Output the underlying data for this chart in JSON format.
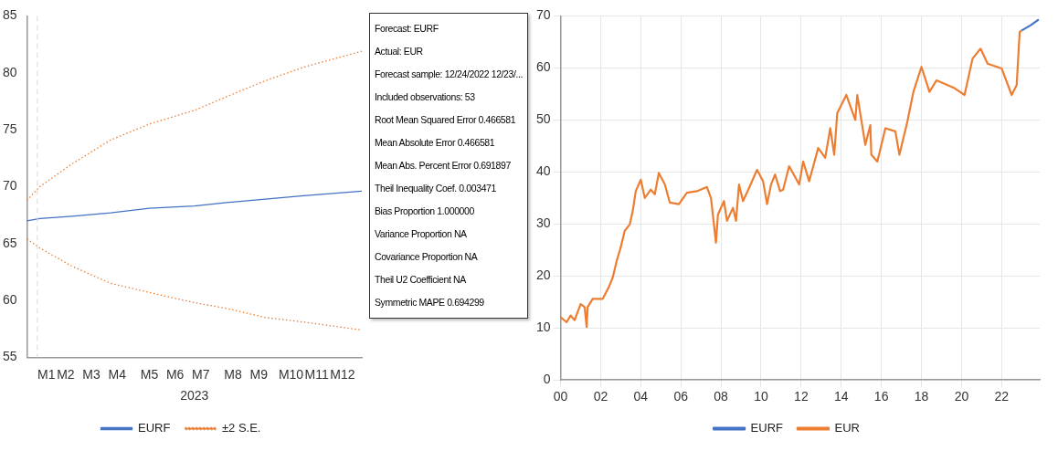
{
  "chart_data": [
    {
      "type": "line",
      "xlabel": "2023",
      "categories": [
        null,
        null,
        null,
        "M1",
        null,
        null,
        "M2",
        null,
        null,
        null,
        "M3",
        null,
        null,
        null,
        "M4",
        null,
        null,
        null,
        null,
        "M5",
        null,
        null,
        null,
        "M6",
        null,
        null,
        null,
        "M7",
        null,
        null,
        null,
        null,
        "M8",
        null,
        null,
        null,
        "M9",
        null,
        null,
        null,
        null,
        "M10",
        null,
        null,
        null,
        "M11",
        null,
        null,
        null,
        "M12",
        null,
        null,
        null
      ],
      "series": [
        {
          "name": "EURF",
          "color": "#4472c4",
          "line_style": "solid",
          "values": [
            67.0,
            null,
            67.2,
            null,
            null,
            null,
            null,
            67.4,
            null,
            null,
            null,
            null,
            null,
            67.7,
            null,
            null,
            null,
            null,
            null,
            68.1,
            null,
            null,
            null,
            null,
            null,
            null,
            68.3,
            null,
            null,
            null,
            null,
            68.6,
            null,
            null,
            null,
            null,
            null,
            68.9,
            null,
            null,
            null,
            null,
            null,
            69.2,
            null,
            null,
            null,
            null,
            null,
            null,
            null,
            null,
            69.6
          ]
        },
        {
          "name": "±2 S.E.",
          "color": "#ed7d31",
          "line_style": "dotted",
          "values": [
            68.8,
            null,
            70.0,
            null,
            null,
            null,
            null,
            72.0,
            null,
            null,
            null,
            null,
            null,
            74.1,
            null,
            null,
            null,
            null,
            null,
            75.5,
            null,
            null,
            null,
            null,
            null,
            null,
            76.7,
            null,
            null,
            null,
            null,
            77.9,
            null,
            null,
            null,
            null,
            null,
            79.3,
            null,
            null,
            null,
            null,
            null,
            80.5,
            null,
            null,
            null,
            null,
            null,
            null,
            null,
            null,
            81.9
          ]
        },
        {
          "color": "#ed7d31",
          "line_style": "dotted",
          "values": [
            65.4,
            null,
            64.6,
            null,
            null,
            null,
            null,
            63.0,
            null,
            null,
            null,
            null,
            null,
            61.5,
            null,
            null,
            null,
            null,
            null,
            60.7,
            null,
            null,
            null,
            null,
            null,
            null,
            59.8,
            null,
            null,
            null,
            null,
            59.3,
            null,
            null,
            null,
            null,
            null,
            58.5,
            null,
            null,
            null,
            null,
            null,
            58.1,
            null,
            null,
            null,
            null,
            null,
            null,
            null,
            null,
            57.4
          ]
        }
      ],
      "ylim": [
        55,
        85
      ],
      "yticks": [
        55,
        60,
        65,
        70,
        75,
        80,
        85
      ],
      "grid": false,
      "legend": "bottom",
      "marker": "none"
    },
    {
      "type": "other",
      "annotations": [
        "Forecast: EURF",
        "Actual: EUR",
        "Forecast sample: 12/24/2022 12/23/...",
        "Included observations: 53",
        "Root Mean Squared Error 0.466581",
        "Mean Absolute Error 0.466581",
        "Mean Abs. Percent Error 0.691897",
        "Theil Inequality Coef. 0.003471",
        "Bias Proportion 1.000000",
        "Variance Proportion NA",
        "Covariance Proportion NA",
        "Theil U2 Coefficient NA",
        "Symmetric MAPE 0.694299"
      ]
    },
    {
      "type": "line",
      "series": [
        {
          "name": "EURF",
          "color": "#4472c4",
          "x": [
            2023.0,
            2023.45,
            2023.85
          ],
          "values": [
            67.2,
            68.2,
            69.3
          ]
        },
        {
          "name": "EUR",
          "color": "#ed7d31",
          "x": [
            2000.0,
            2000.3,
            2000.5,
            2000.7,
            2001.0,
            2001.2,
            2001.3,
            2001.35,
            2001.6,
            2002.1,
            2002.4,
            2002.6,
            2002.8,
            2003.0,
            2003.2,
            2003.45,
            2003.6,
            2003.75,
            2004.0,
            2004.2,
            2004.5,
            2004.7,
            2004.9,
            2005.2,
            2005.45,
            2005.9,
            2006.3,
            2006.8,
            2007.3,
            2007.5,
            2007.65,
            2007.75,
            2007.85,
            2008.15,
            2008.3,
            2008.6,
            2008.75,
            2008.9,
            2009.1,
            2009.4,
            2009.8,
            2010.1,
            2010.3,
            2010.5,
            2010.7,
            2010.95,
            2011.1,
            2011.4,
            2011.9,
            2012.1,
            2012.4,
            2012.85,
            2013.2,
            2013.45,
            2013.65,
            2013.8,
            2014.25,
            2014.7,
            2014.8,
            2015.2,
            2015.45,
            2015.5,
            2015.8,
            2016.2,
            2016.7,
            2016.9,
            2017.3,
            2017.6,
            2018.0,
            2018.4,
            2018.75,
            2019.65,
            2020.15,
            2020.55,
            2020.95,
            2021.3,
            2022.0,
            2022.5,
            2022.75,
            2022.9,
            2023.0
          ],
          "values": [
            12.1,
            11.1,
            12.4,
            11.5,
            14.6,
            14.0,
            10.2,
            14.0,
            15.6,
            15.6,
            17.8,
            19.7,
            22.9,
            25.5,
            28.7,
            29.9,
            32.5,
            36.3,
            38.5,
            35.0,
            36.6,
            35.7,
            39.8,
            37.6,
            34.1,
            33.8,
            36.0,
            36.3,
            37.1,
            35.0,
            29.9,
            26.4,
            31.8,
            34.4,
            30.6,
            33.1,
            30.6,
            37.6,
            34.4,
            36.9,
            40.4,
            38.2,
            33.8,
            37.6,
            39.5,
            36.3,
            36.6,
            41.1,
            37.6,
            42.0,
            38.2,
            44.6,
            42.7,
            48.4,
            43.3,
            51.3,
            54.8,
            50.0,
            54.8,
            45.2,
            49.0,
            43.3,
            42.0,
            48.4,
            47.8,
            43.3,
            49.7,
            55.4,
            60.2,
            55.4,
            57.6,
            56.1,
            54.8,
            61.8,
            63.7,
            60.8,
            59.9,
            54.8,
            56.7,
            66.9,
            67.2
          ]
        }
      ],
      "xlim": [
        2000,
        2023.9
      ],
      "xticks": [
        {
          "value": 2000,
          "label": "00"
        },
        {
          "value": 2002,
          "label": "02"
        },
        {
          "value": 2004,
          "label": "04"
        },
        {
          "value": 2006,
          "label": "06"
        },
        {
          "value": 2008,
          "label": "08"
        },
        {
          "value": 2010,
          "label": "10"
        },
        {
          "value": 2012,
          "label": "12"
        },
        {
          "value": 2014,
          "label": "14"
        },
        {
          "value": 2016,
          "label": "16"
        },
        {
          "value": 2018,
          "label": "18"
        },
        {
          "value": 2020,
          "label": "20"
        },
        {
          "value": 2022,
          "label": "22"
        }
      ],
      "ylim": [
        0,
        70
      ],
      "yticks": [
        0,
        10,
        20,
        30,
        40,
        50,
        60,
        70
      ],
      "grid": true,
      "legend": "bottom",
      "marker": "none"
    }
  ]
}
